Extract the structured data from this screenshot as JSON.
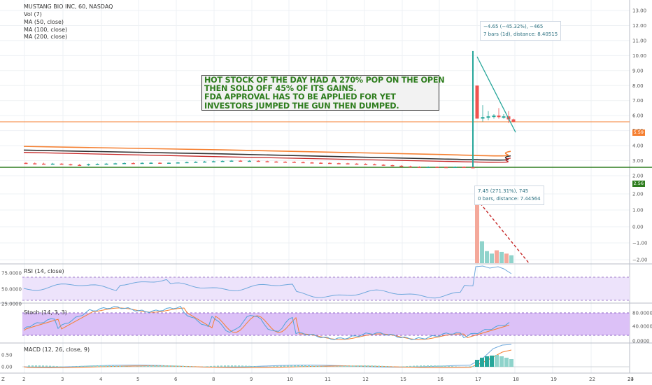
{
  "header": {
    "symbol_line": "MUSTANG BIO INC, 60, NASDAQ",
    "indicators": [
      "Vol (7)",
      "MA (50, close)",
      "MA (100, close)",
      "MA (200, close)"
    ]
  },
  "headline_lines": [
    "HOT STOCK OF THE DAY HAD A 270% POP ON THE OPEN",
    "THEN SOLD OFF 45% OF ITS GAINS.",
    "FDA APPROVAL HAS TO BE APPLIED FOR YET",
    "INVESTORS JUMPED THE GUN THEN DUMPED."
  ],
  "measure_top": {
    "line1": "−4.65 (−45.32%), −465",
    "line2": "7 bars (1d), distance: 8.40515"
  },
  "measure_bottom": {
    "line1": "7.45 (271.31%), 745",
    "line2": "0 bars, distance: 7.44564"
  },
  "price_tags": {
    "current": "5.59",
    "low": "2.56"
  },
  "panes": {
    "rsi": "RSI (14, close)",
    "stoch": "Stoch (14, 3, 3)",
    "macd": "MACD (12, 26, close, 9)"
  },
  "colors": {
    "up": "#26a69a",
    "down": "#ef5350",
    "ma_dark": "#333333",
    "ma_orange": "#f57f30",
    "ma_red": "#c62828",
    "support": "#2e7d1e",
    "resistance": "#f57f30",
    "rsi": "#6fa8dc",
    "stoch_k": "#4fa3d9",
    "stoch_d": "#f57f30",
    "band_fill": "#e8d4fb"
  },
  "chart_data": {
    "type": "candlestick",
    "price_axis": {
      "ticks": [
        "13.00",
        "12.00",
        "11.00",
        "10.00",
        "9.00",
        "8.00",
        "7.00",
        "6.00",
        "5.00",
        "4.00",
        "3.00",
        "2.00"
      ],
      "ylim": [
        1.7,
        13.4
      ]
    },
    "volume_axis": {
      "ticks": [
        "2.00",
        "1.00",
        "0.00",
        "−1.00",
        "−2.00"
      ]
    },
    "rsi_axis": {
      "ticks": [
        "75.0000",
        "50.0000",
        "25.0000"
      ]
    },
    "stoch_axis": {
      "ticks": [
        "80.0000",
        "40.0000",
        "0.0000"
      ]
    },
    "macd_axis": {
      "ticks": [
        "0.50",
        "0.00"
      ]
    },
    "x_ticks": [
      "2",
      "3",
      "4",
      "5",
      "6",
      "8",
      "9",
      "10",
      "11",
      "12",
      "15",
      "16",
      "17",
      "18",
      "19",
      "22",
      "23",
      "24"
    ],
    "levels": {
      "support": 2.56,
      "resistance": 5.59
    },
    "candles_pre": [
      [
        2.85,
        2.82,
        2.9,
        2.78
      ],
      [
        2.82,
        2.8,
        2.88,
        2.76
      ],
      [
        2.8,
        2.78,
        2.86,
        2.75
      ],
      [
        2.78,
        2.8,
        2.85,
        2.74
      ],
      [
        2.8,
        2.76,
        2.84,
        2.72
      ],
      [
        2.76,
        2.72,
        2.8,
        2.68
      ],
      [
        2.72,
        2.7,
        2.78,
        2.66
      ],
      [
        2.7,
        2.76,
        2.8,
        2.66
      ],
      [
        2.76,
        2.78,
        2.82,
        2.72
      ],
      [
        2.78,
        2.8,
        2.84,
        2.74
      ],
      [
        2.8,
        2.82,
        2.86,
        2.76
      ],
      [
        2.82,
        2.84,
        2.88,
        2.78
      ],
      [
        2.84,
        2.82,
        2.88,
        2.78
      ],
      [
        2.82,
        2.85,
        2.89,
        2.79
      ],
      [
        2.85,
        2.86,
        2.9,
        2.81
      ],
      [
        2.86,
        2.84,
        2.9,
        2.8
      ],
      [
        2.84,
        2.86,
        2.9,
        2.8
      ],
      [
        2.86,
        2.88,
        2.92,
        2.82
      ],
      [
        2.88,
        2.9,
        2.94,
        2.84
      ],
      [
        2.9,
        2.92,
        2.96,
        2.86
      ],
      [
        2.92,
        2.94,
        2.98,
        2.88
      ],
      [
        2.94,
        2.96,
        3.0,
        2.9
      ],
      [
        2.96,
        2.98,
        3.02,
        2.92
      ],
      [
        2.98,
        3.0,
        3.04,
        2.94
      ],
      [
        3.0,
        2.98,
        3.04,
        2.94
      ],
      [
        2.98,
        2.99,
        3.03,
        2.94
      ],
      [
        2.99,
        2.96,
        3.02,
        2.92
      ],
      [
        2.96,
        2.94,
        3.0,
        2.9
      ],
      [
        2.94,
        2.93,
        2.98,
        2.89
      ],
      [
        2.93,
        2.92,
        2.97,
        2.88
      ],
      [
        2.92,
        2.9,
        2.96,
        2.86
      ],
      [
        2.9,
        2.88,
        2.94,
        2.84
      ],
      [
        2.88,
        2.86,
        2.92,
        2.82
      ],
      [
        2.86,
        2.85,
        2.9,
        2.81
      ],
      [
        2.85,
        2.83,
        2.89,
        2.79
      ],
      [
        2.83,
        2.82,
        2.87,
        2.78
      ],
      [
        2.82,
        2.8,
        2.86,
        2.76
      ],
      [
        2.8,
        2.78,
        2.84,
        2.74
      ],
      [
        2.78,
        2.76,
        2.82,
        2.72
      ],
      [
        2.76,
        2.73,
        2.8,
        2.7
      ],
      [
        2.73,
        2.7,
        2.77,
        2.66
      ],
      [
        2.7,
        2.66,
        2.74,
        2.62
      ],
      [
        2.66,
        2.62,
        2.7,
        2.58
      ],
      [
        2.62,
        2.58,
        2.66,
        2.55
      ],
      [
        2.58,
        2.56,
        2.63,
        2.52
      ],
      [
        2.56,
        2.58,
        2.62,
        2.52
      ],
      [
        2.58,
        2.57,
        2.62,
        2.53
      ],
      [
        2.57,
        2.56,
        2.61,
        2.52
      ],
      [
        2.56,
        2.58,
        2.62,
        2.52
      ],
      [
        2.58,
        2.56,
        2.62,
        2.52
      ],
      [
        2.56,
        2.55,
        2.6,
        2.5
      ]
    ],
    "candles_post": [
      [
        2.6,
        10.2,
        10.3,
        2.56
      ],
      [
        8.0,
        5.8,
        8.0,
        5.8
      ],
      [
        5.8,
        5.9,
        6.7,
        5.6
      ],
      [
        5.9,
        5.95,
        6.3,
        5.7
      ],
      [
        5.95,
        6.0,
        6.1,
        5.8
      ],
      [
        6.0,
        5.9,
        6.5,
        5.8
      ],
      [
        5.9,
        5.95,
        6.1,
        5.8
      ],
      [
        5.95,
        5.75,
        6.3,
        5.5
      ],
      [
        5.75,
        5.59,
        5.8,
        5.55
      ]
    ],
    "volume_bars": [
      1.95,
      -0.9,
      -1.5,
      -1.65,
      -1.45,
      -1.55,
      -1.65,
      -1.75
    ],
    "rsi_levels": {
      "upper": 70,
      "lower": 30
    }
  }
}
